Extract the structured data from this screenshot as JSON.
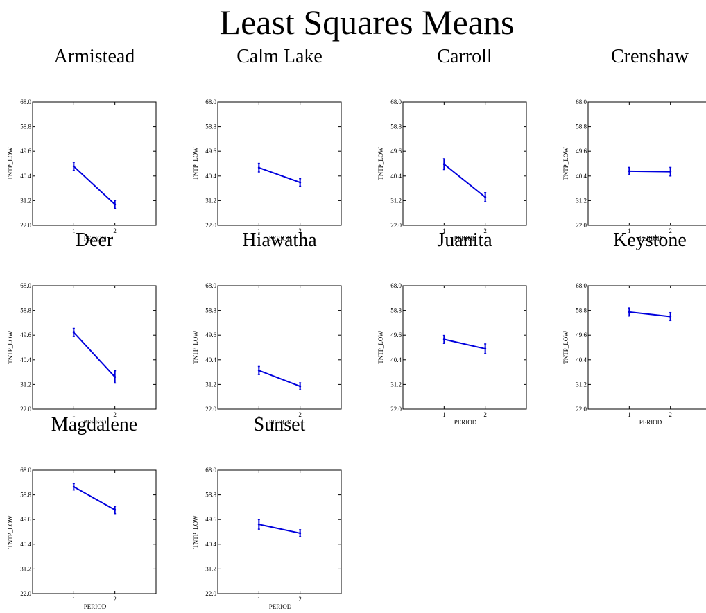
{
  "figure": {
    "title": "Least Squares Means"
  },
  "style": {
    "series_color": "#0000dd",
    "axis_color": "#000000"
  },
  "axes_common": {
    "xlabel": "PERIOD",
    "ylabel": "TNTP_LOW",
    "xticks": [
      "1",
      "2"
    ],
    "xlim": [
      0,
      3
    ],
    "ylim": [
      22.0,
      68.0
    ],
    "yticks": [
      "22.0",
      "31.2",
      "40.4",
      "49.6",
      "58.8",
      "68.0"
    ]
  },
  "chart_data": [
    {
      "type": "line",
      "title": "Armistead",
      "x": [
        1,
        2
      ],
      "y": [
        44.0,
        29.8
      ],
      "err": [
        1.5,
        1.5
      ],
      "xlabel": "PERIOD",
      "ylabel": "TNTP_LOW",
      "ylim": [
        22.0,
        68.0
      ]
    },
    {
      "type": "line",
      "title": "Calm Lake",
      "x": [
        1,
        2
      ],
      "y": [
        43.5,
        38.0
      ],
      "err": [
        1.6,
        1.4
      ],
      "xlabel": "PERIOD",
      "ylabel": "TNTP_LOW",
      "ylim": [
        22.0,
        68.0
      ]
    },
    {
      "type": "line",
      "title": "Carroll",
      "x": [
        1,
        2
      ],
      "y": [
        44.8,
        32.5
      ],
      "err": [
        2.0,
        1.7
      ],
      "xlabel": "PERIOD",
      "ylabel": "TNTP_LOW",
      "ylim": [
        22.0,
        68.0
      ]
    },
    {
      "type": "line",
      "title": "Crenshaw",
      "x": [
        1,
        2
      ],
      "y": [
        42.2,
        42.0
      ],
      "err": [
        1.4,
        1.6
      ],
      "xlabel": "PERIOD",
      "ylabel": "TNTP_LOW",
      "ylim": [
        22.0,
        68.0
      ]
    },
    {
      "type": "line",
      "title": "Deer",
      "x": [
        1,
        2
      ],
      "y": [
        50.6,
        34.0
      ],
      "err": [
        1.5,
        2.3
      ],
      "xlabel": "PERIOD",
      "ylabel": "TNTP_LOW",
      "ylim": [
        22.0,
        68.0
      ]
    },
    {
      "type": "line",
      "title": "Hiawatha",
      "x": [
        1,
        2
      ],
      "y": [
        36.4,
        30.5
      ],
      "err": [
        1.5,
        1.3
      ],
      "xlabel": "PERIOD",
      "ylabel": "TNTP_LOW",
      "ylim": [
        22.0,
        68.0
      ]
    },
    {
      "type": "line",
      "title": "Juanita",
      "x": [
        1,
        2
      ],
      "y": [
        48.0,
        44.5
      ],
      "err": [
        1.5,
        1.8
      ],
      "xlabel": "PERIOD",
      "ylabel": "TNTP_LOW",
      "ylim": [
        22.0,
        68.0
      ]
    },
    {
      "type": "line",
      "title": "Keystone",
      "x": [
        1,
        2
      ],
      "y": [
        58.2,
        56.5
      ],
      "err": [
        1.5,
        1.5
      ],
      "xlabel": "PERIOD",
      "ylabel": "TNTP_LOW",
      "ylim": [
        22.0,
        68.0
      ]
    },
    {
      "type": "line",
      "title": "Magdalene",
      "x": [
        1,
        2
      ],
      "y": [
        61.8,
        53.2
      ],
      "err": [
        1.2,
        1.4
      ],
      "xlabel": "PERIOD",
      "ylabel": "TNTP_LOW",
      "ylim": [
        22.0,
        68.0
      ]
    },
    {
      "type": "line",
      "title": "Sunset",
      "x": [
        1,
        2
      ],
      "y": [
        47.8,
        44.5
      ],
      "err": [
        1.8,
        1.3
      ],
      "xlabel": "PERIOD",
      "ylabel": "TNTP_LOW",
      "ylim": [
        22.0,
        68.0
      ]
    }
  ]
}
